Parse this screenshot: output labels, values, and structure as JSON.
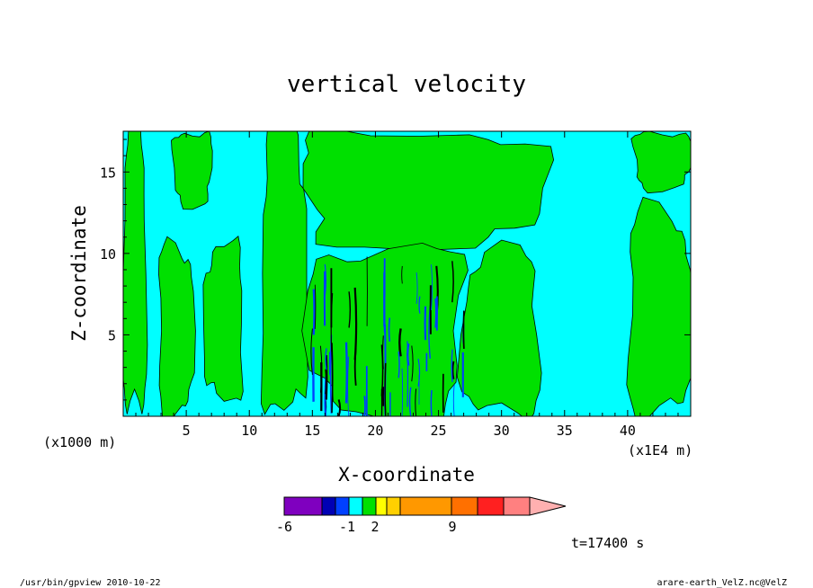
{
  "chart_data": {
    "type": "heatmap",
    "title": "vertical velocity",
    "xlabel": "X-coordinate",
    "ylabel": "Z-coordinate",
    "x_unit_left": "(x1000 m)",
    "x_unit_right": "(x1E4 m)",
    "xlim": [
      0,
      45
    ],
    "ylim": [
      0,
      17.5
    ],
    "x_ticks": [
      "5",
      "10",
      "15",
      "20",
      "25",
      "30",
      "35",
      "40"
    ],
    "y_ticks": [
      "5",
      "10",
      "15"
    ],
    "background_color": "#00ffff",
    "green_regions": [
      {
        "label": "left edge band",
        "x": [
          0,
          1.8
        ],
        "z": [
          0,
          17.5
        ]
      },
      {
        "label": "left column",
        "x": [
          2.8,
          5.5
        ],
        "z": [
          0,
          10.5
        ]
      },
      {
        "label": "upper left lobe",
        "x": [
          4,
          7
        ],
        "z": [
          13,
          17.5
        ]
      },
      {
        "label": "inner left column",
        "x": [
          6.5,
          9.5
        ],
        "z": [
          1,
          10.5
        ]
      },
      {
        "label": "central column",
        "x": [
          11,
          14.5
        ],
        "z": [
          0,
          17.5
        ]
      },
      {
        "label": "upper central band",
        "x": [
          14,
          33
        ],
        "z": [
          10.5,
          17.5
        ]
      },
      {
        "label": "turbulent core",
        "x": [
          15,
          27
        ],
        "z": [
          0,
          10.5
        ]
      },
      {
        "label": "right column",
        "x": [
          27,
          33
        ],
        "z": [
          0,
          10
        ]
      },
      {
        "label": "far right column",
        "x": [
          40,
          45
        ],
        "z": [
          0,
          12.5
        ]
      },
      {
        "label": "top right lobe",
        "x": [
          40.5,
          45
        ],
        "z": [
          14,
          17.5
        ]
      }
    ],
    "colorbar": {
      "colors": [
        "#7f00bf",
        "#0000b4",
        "#0040ff",
        "#00ffff",
        "#00e000",
        "#ffff00",
        "#ffd000",
        "#ff9800",
        "#ff7000",
        "#ff2020",
        "#ff8080",
        "#ffb0b0"
      ],
      "labels": [
        "-6",
        "-1",
        "2",
        "9"
      ]
    }
  },
  "annotations": {
    "time": "t=17400 s",
    "footer_left": "/usr/bin/gpview  2010-10-22",
    "footer_right": "arare-earth_VelZ.nc@VelZ"
  }
}
